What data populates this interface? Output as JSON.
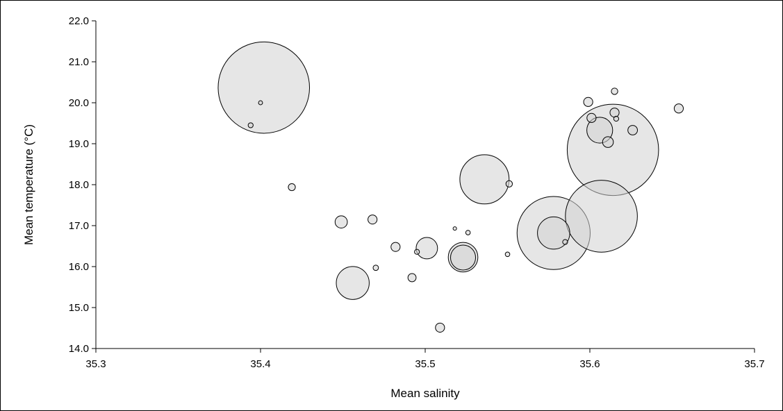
{
  "chart_data": {
    "type": "scatter",
    "xlabel": "Mean salinity",
    "ylabel": "Mean temperature  (°C)",
    "xlim": [
      35.3,
      35.7
    ],
    "ylim": [
      14.0,
      22.0
    ],
    "x_ticks": [
      "35.3",
      "35.4",
      "35.5",
      "35.6",
      "35.7"
    ],
    "y_ticks": [
      "14.0",
      "15.0",
      "16.0",
      "17.0",
      "18.0",
      "19.0",
      "20.0",
      "21.0",
      "22.0"
    ],
    "grid": false,
    "bubble_fill": "#d3d3d3",
    "bubble_stroke": "#000000",
    "series": [
      {
        "points": [
          {
            "x": 35.402,
            "y": 20.37,
            "size": 1000
          },
          {
            "x": 35.614,
            "y": 18.85,
            "size": 1000
          },
          {
            "x": 35.607,
            "y": 17.23,
            "size": 620
          },
          {
            "x": 35.578,
            "y": 16.82,
            "size": 640
          },
          {
            "x": 35.536,
            "y": 18.13,
            "size": 290
          },
          {
            "x": 35.456,
            "y": 15.6,
            "size": 130
          },
          {
            "x": 35.523,
            "y": 16.23,
            "size": 105
          },
          {
            "x": 35.523,
            "y": 16.22,
            "size": 75
          },
          {
            "x": 35.578,
            "y": 16.82,
            "size": 125
          },
          {
            "x": 35.606,
            "y": 19.33,
            "size": 80
          },
          {
            "x": 35.501,
            "y": 16.45,
            "size": 55
          },
          {
            "x": 35.449,
            "y": 17.09,
            "size": 18
          },
          {
            "x": 35.611,
            "y": 19.04,
            "size": 14
          },
          {
            "x": 35.626,
            "y": 19.33,
            "size": 11
          },
          {
            "x": 35.599,
            "y": 20.02,
            "size": 10
          },
          {
            "x": 35.654,
            "y": 19.86,
            "size": 10
          },
          {
            "x": 35.615,
            "y": 19.76,
            "size": 10
          },
          {
            "x": 35.601,
            "y": 19.63,
            "size": 10
          },
          {
            "x": 35.468,
            "y": 17.15,
            "size": 10
          },
          {
            "x": 35.482,
            "y": 16.48,
            "size": 10
          },
          {
            "x": 35.509,
            "y": 14.51,
            "size": 10
          },
          {
            "x": 35.492,
            "y": 15.73,
            "size": 8
          },
          {
            "x": 35.419,
            "y": 17.94,
            "size": 6
          },
          {
            "x": 35.551,
            "y": 18.02,
            "size": 5
          },
          {
            "x": 35.615,
            "y": 20.28,
            "size": 5
          },
          {
            "x": 35.47,
            "y": 15.97,
            "size": 3.5
          },
          {
            "x": 35.616,
            "y": 19.61,
            "size": 3
          },
          {
            "x": 35.394,
            "y": 19.45,
            "size": 3
          },
          {
            "x": 35.585,
            "y": 16.6,
            "size": 3
          },
          {
            "x": 35.495,
            "y": 16.36,
            "size": 3
          },
          {
            "x": 35.526,
            "y": 16.83,
            "size": 2.5
          },
          {
            "x": 35.55,
            "y": 16.3,
            "size": 2.5
          },
          {
            "x": 35.4,
            "y": 20.0,
            "size": 2
          },
          {
            "x": 35.518,
            "y": 16.93,
            "size": 1.5
          }
        ]
      }
    ]
  }
}
